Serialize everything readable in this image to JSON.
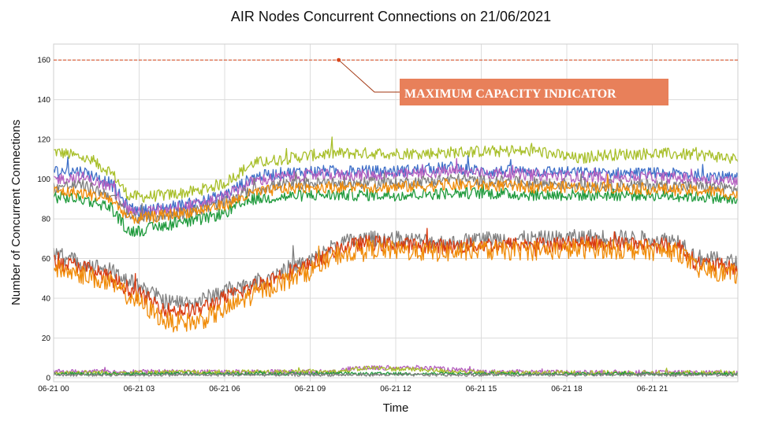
{
  "chart_data": {
    "type": "line",
    "title": "AIR Nodes Concurrent Connections on 21/06/2021",
    "xlabel": "Time",
    "ylabel": "Number of Concurrent Connections",
    "x_ticks": [
      "06-21 00",
      "06-21 03",
      "06-21 06",
      "06-21 09",
      "06-21 12",
      "06-21 15",
      "06-21 18",
      "06-21 21"
    ],
    "x_range_hours": [
      0,
      24
    ],
    "y_ticks": [
      0,
      20,
      40,
      60,
      80,
      100,
      120,
      140,
      160
    ],
    "ylim": [
      -2,
      168
    ],
    "grid": true,
    "legend": "none",
    "colors": {
      "capacity_line": "#d9461b",
      "annotation_box": "#e8805a",
      "grid": "#dcdcdc"
    },
    "capacity_line": {
      "value": 160,
      "annotation": "MAXIMUM CAPACITY INDICATOR"
    },
    "series": [
      {
        "color": "#a8bf2a",
        "noise": 3,
        "profile": [
          [
            0,
            114
          ],
          [
            1,
            111
          ],
          [
            2,
            104
          ],
          [
            2.6,
            92
          ],
          [
            3,
            91
          ],
          [
            4,
            92
          ],
          [
            5,
            94
          ],
          [
            6,
            98
          ],
          [
            7,
            108
          ],
          [
            8,
            110
          ],
          [
            9,
            112
          ],
          [
            10,
            113
          ],
          [
            11,
            113
          ],
          [
            13,
            113
          ],
          [
            15,
            114
          ],
          [
            17,
            114
          ],
          [
            18.5,
            110
          ],
          [
            19,
            112
          ],
          [
            21,
            113
          ],
          [
            23,
            112
          ],
          [
            24,
            110
          ]
        ]
      },
      {
        "color": "#3e6fc8",
        "noise": 3,
        "profile": [
          [
            0,
            104
          ],
          [
            1,
            104
          ],
          [
            2,
            98
          ],
          [
            2.6,
            86
          ],
          [
            3,
            84
          ],
          [
            4,
            86
          ],
          [
            5,
            88
          ],
          [
            6,
            92
          ],
          [
            7,
            101
          ],
          [
            8,
            103
          ],
          [
            9,
            104
          ],
          [
            10,
            104
          ],
          [
            12,
            104
          ],
          [
            14,
            106
          ],
          [
            15,
            104
          ],
          [
            17,
            104
          ],
          [
            19,
            103
          ],
          [
            21,
            103
          ],
          [
            23,
            102
          ],
          [
            24,
            100
          ]
        ]
      },
      {
        "color": "#b45fbf",
        "noise": 3,
        "profile": [
          [
            0,
            100
          ],
          [
            1,
            101
          ],
          [
            2,
            96
          ],
          [
            2.6,
            85
          ],
          [
            3,
            83
          ],
          [
            4,
            85
          ],
          [
            5,
            87
          ],
          [
            6,
            91
          ],
          [
            7,
            99
          ],
          [
            8,
            101
          ],
          [
            9,
            102
          ],
          [
            10,
            102
          ],
          [
            12,
            102
          ],
          [
            14,
            104
          ],
          [
            15,
            103
          ],
          [
            17,
            102
          ],
          [
            19,
            101
          ],
          [
            21,
            101
          ],
          [
            23,
            100
          ],
          [
            24,
            99
          ]
        ]
      },
      {
        "color": "#7f7f7f",
        "noise": 3,
        "profile": [
          [
            0,
            96
          ],
          [
            1,
            97
          ],
          [
            2,
            92
          ],
          [
            2.6,
            82
          ],
          [
            3,
            80
          ],
          [
            4,
            82
          ],
          [
            5,
            84
          ],
          [
            6,
            88
          ],
          [
            7,
            95
          ],
          [
            8,
            97
          ],
          [
            9,
            98
          ],
          [
            10,
            98
          ],
          [
            12,
            98
          ],
          [
            14,
            100
          ],
          [
            15,
            99
          ],
          [
            17,
            98
          ],
          [
            19,
            97
          ],
          [
            21,
            97
          ],
          [
            23,
            96
          ],
          [
            24,
            95
          ]
        ]
      },
      {
        "color": "#1f9a3c",
        "noise": 3,
        "profile": [
          [
            0,
            91
          ],
          [
            1,
            90
          ],
          [
            2,
            86
          ],
          [
            2.6,
            74
          ],
          [
            3,
            74
          ],
          [
            4,
            77
          ],
          [
            5,
            79
          ],
          [
            6,
            83
          ],
          [
            7,
            90
          ],
          [
            8,
            91
          ],
          [
            9,
            92
          ],
          [
            10,
            92
          ],
          [
            12,
            92
          ],
          [
            14,
            93
          ],
          [
            15,
            93
          ],
          [
            17,
            92
          ],
          [
            19,
            92
          ],
          [
            21,
            92
          ],
          [
            23,
            91
          ],
          [
            24,
            89
          ]
        ]
      },
      {
        "color": "#f08c0a",
        "noise": 3,
        "profile": [
          [
            0,
            94
          ],
          [
            1,
            93
          ],
          [
            2,
            90
          ],
          [
            2.6,
            81
          ],
          [
            3,
            80
          ],
          [
            4,
            82
          ],
          [
            5,
            84
          ],
          [
            6,
            87
          ],
          [
            7,
            93
          ],
          [
            8,
            95
          ],
          [
            9,
            96
          ],
          [
            10,
            96
          ],
          [
            12,
            96
          ],
          [
            14,
            97
          ],
          [
            15,
            97
          ],
          [
            17,
            96
          ],
          [
            19,
            96
          ],
          [
            21,
            95
          ],
          [
            23,
            94
          ],
          [
            24,
            92
          ]
        ]
      },
      {
        "color": "#808080",
        "noise": 4,
        "profile": [
          [
            0,
            62
          ],
          [
            1,
            58
          ],
          [
            2,
            54
          ],
          [
            3,
            46
          ],
          [
            4,
            38
          ],
          [
            5,
            38
          ],
          [
            6,
            44
          ],
          [
            7,
            48
          ],
          [
            8,
            54
          ],
          [
            9,
            59
          ],
          [
            10,
            68
          ],
          [
            11,
            70
          ],
          [
            12,
            70
          ],
          [
            14,
            68
          ],
          [
            15,
            70
          ],
          [
            17,
            70
          ],
          [
            19,
            71
          ],
          [
            21,
            70
          ],
          [
            22,
            69
          ],
          [
            22.5,
            61
          ],
          [
            24,
            58
          ]
        ]
      },
      {
        "color": "#d93a10",
        "noise": 4,
        "profile": [
          [
            0,
            58
          ],
          [
            1,
            56
          ],
          [
            2,
            50
          ],
          [
            3,
            42
          ],
          [
            4,
            34
          ],
          [
            5,
            34
          ],
          [
            6,
            40
          ],
          [
            7,
            46
          ],
          [
            8,
            52
          ],
          [
            9,
            57
          ],
          [
            10,
            65
          ],
          [
            11,
            68
          ],
          [
            12,
            67
          ],
          [
            14,
            66
          ],
          [
            15,
            67
          ],
          [
            17,
            67
          ],
          [
            19,
            68
          ],
          [
            21,
            67
          ],
          [
            22,
            66
          ],
          [
            22.5,
            58
          ],
          [
            24,
            55
          ]
        ]
      },
      {
        "color": "#f08c0a",
        "noise": 5,
        "profile": [
          [
            0,
            55
          ],
          [
            1,
            52
          ],
          [
            2,
            47
          ],
          [
            3,
            38
          ],
          [
            4,
            28
          ],
          [
            5,
            28
          ],
          [
            6,
            34
          ],
          [
            7,
            42
          ],
          [
            8,
            48
          ],
          [
            9,
            54
          ],
          [
            10,
            62
          ],
          [
            11,
            65
          ],
          [
            12,
            64
          ],
          [
            14,
            63
          ],
          [
            15,
            64
          ],
          [
            17,
            64
          ],
          [
            19,
            65
          ],
          [
            21,
            64
          ],
          [
            22,
            63
          ],
          [
            22.5,
            55
          ],
          [
            24,
            52
          ]
        ]
      },
      {
        "color": "#b45fbf",
        "noise": 1.2,
        "profile": [
          [
            0,
            3
          ],
          [
            10,
            3
          ],
          [
            10.5,
            5
          ],
          [
            13,
            5
          ],
          [
            15,
            3
          ],
          [
            24,
            2.5
          ]
        ]
      },
      {
        "color": "#a8bf2a",
        "noise": 1.2,
        "profile": [
          [
            0,
            2.5
          ],
          [
            10,
            3
          ],
          [
            11,
            5
          ],
          [
            13,
            4
          ],
          [
            15,
            2.5
          ],
          [
            24,
            2.5
          ]
        ]
      },
      {
        "color": "#1f9a3c",
        "noise": 0.8,
        "profile": [
          [
            0,
            2
          ],
          [
            24,
            2
          ]
        ]
      },
      {
        "color": "#808080",
        "noise": 0.8,
        "profile": [
          [
            0,
            1.5
          ],
          [
            24,
            1.5
          ]
        ]
      }
    ]
  }
}
